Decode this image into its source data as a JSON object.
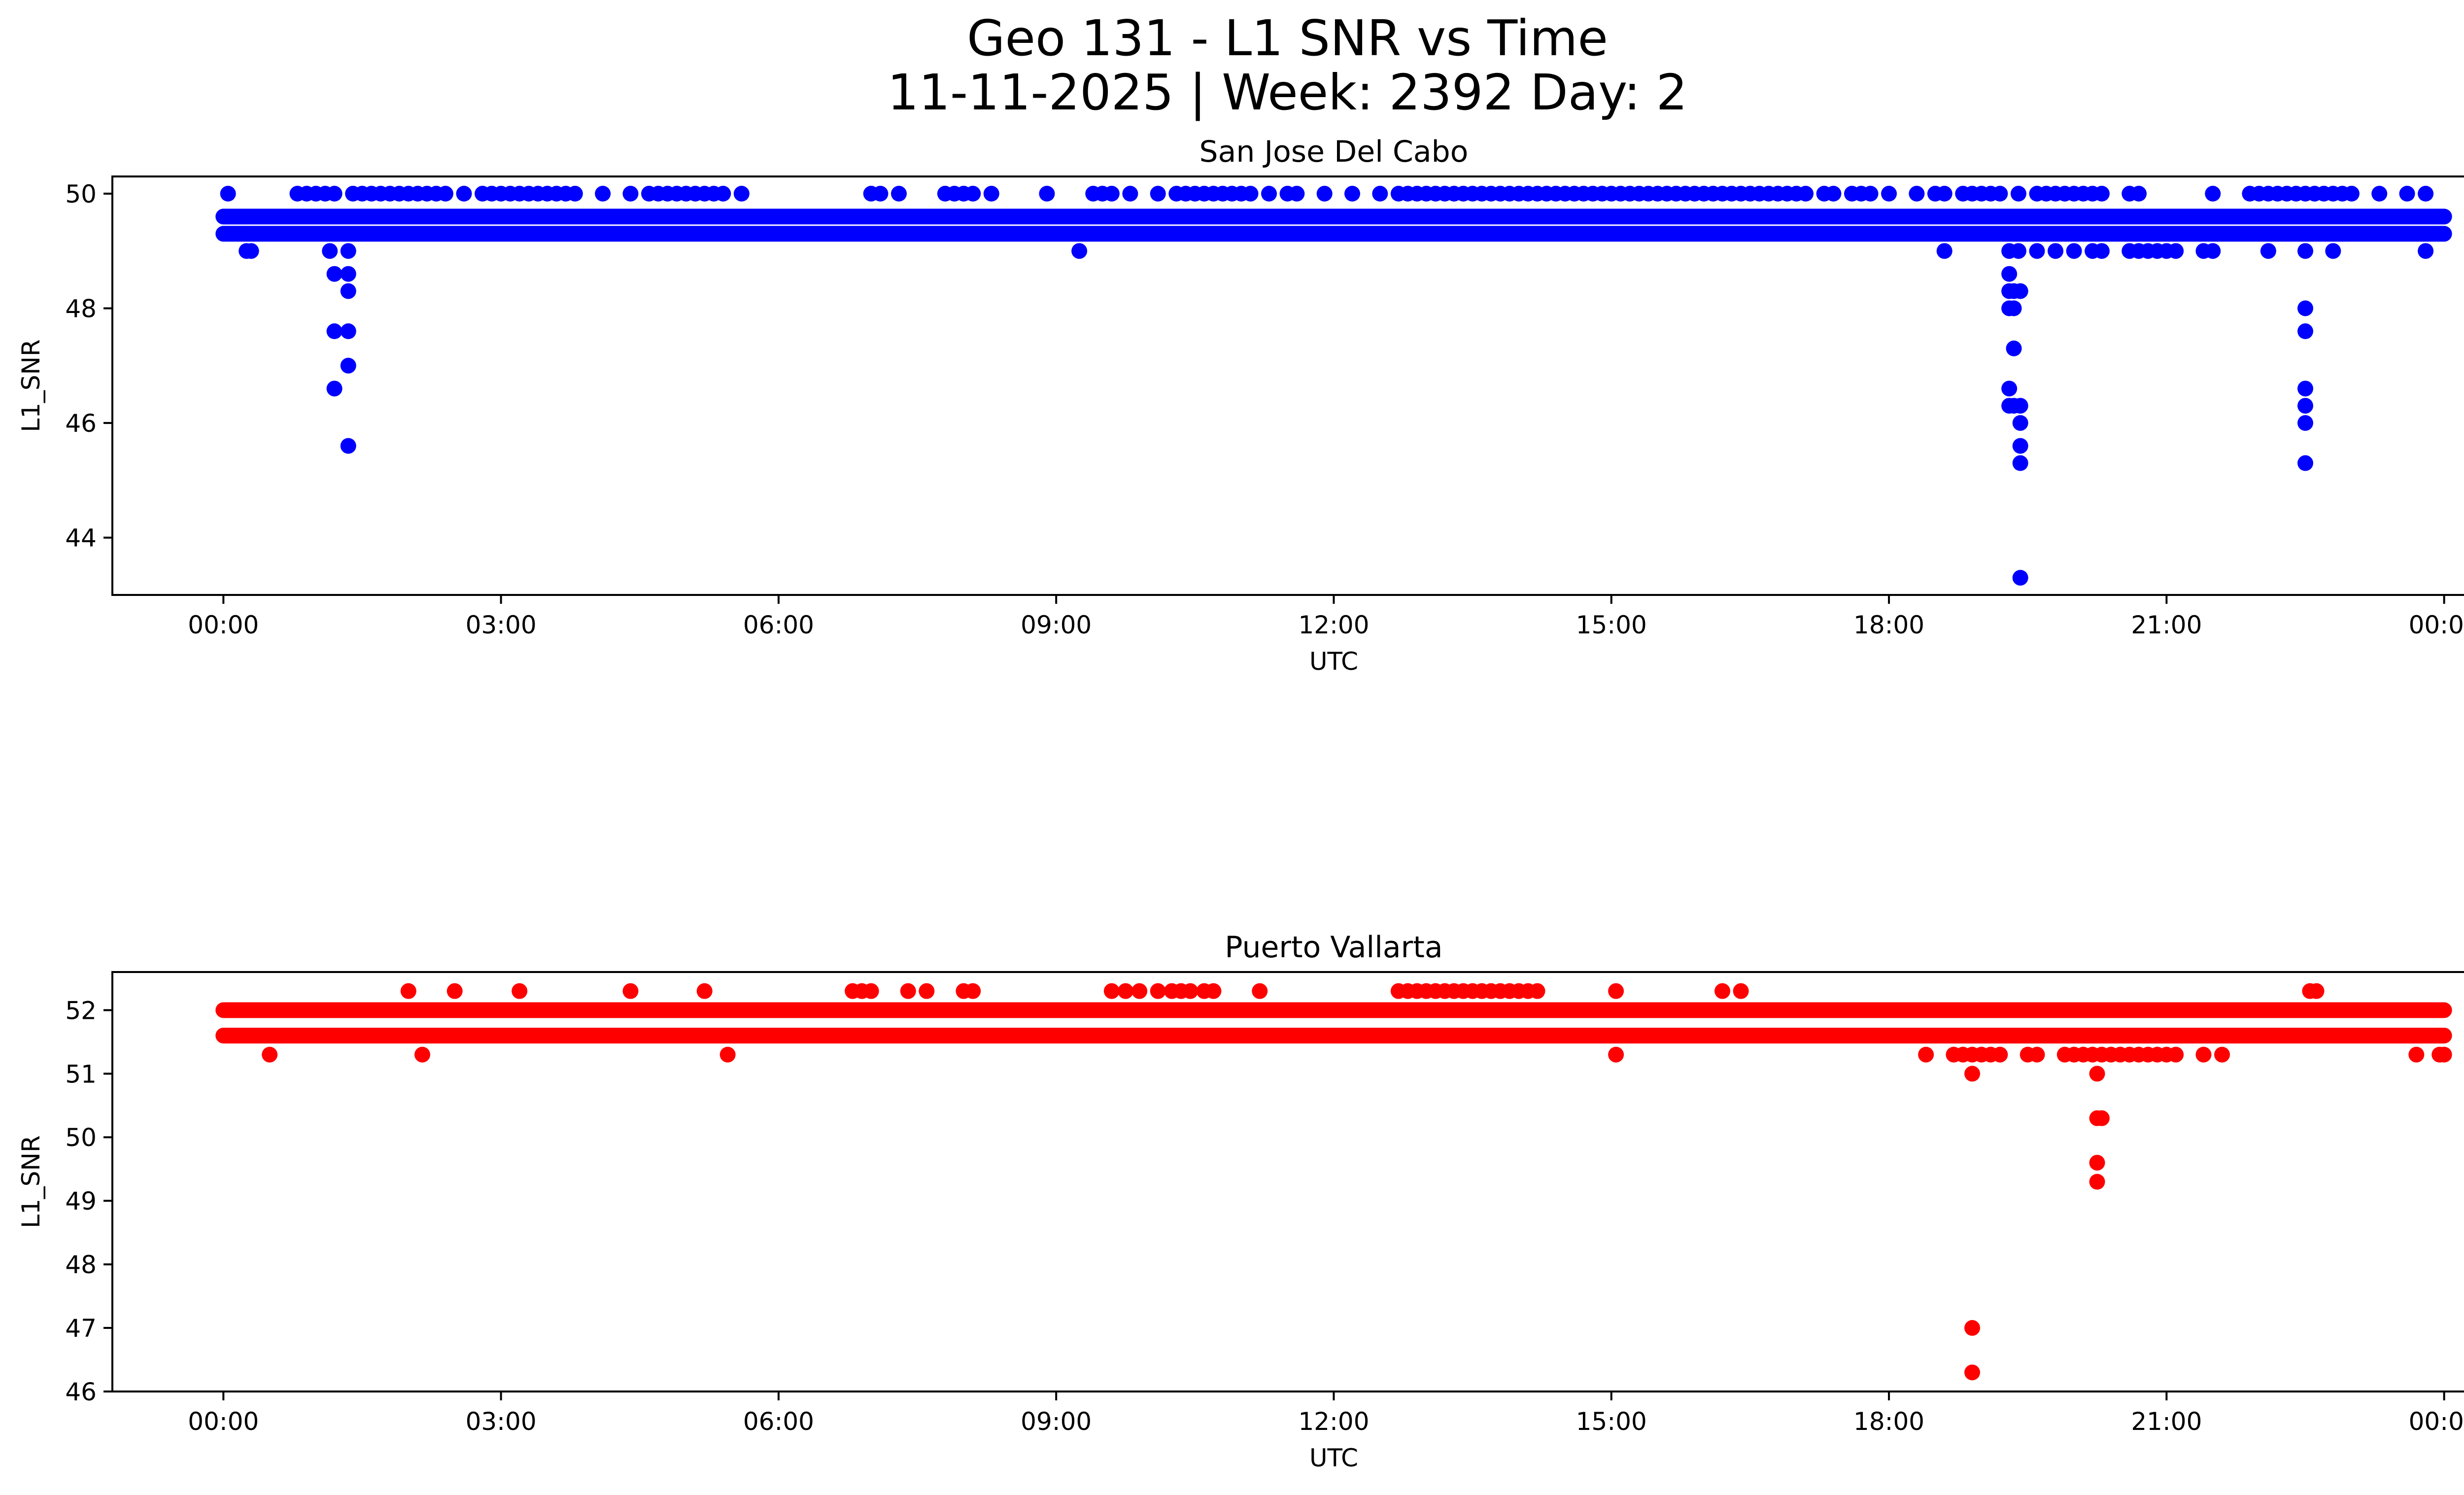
{
  "figure": {
    "title_line1": "Geo 131 - L1 SNR vs Time",
    "title_line2": "11-11-2025 | Week: 2392 Day: 2"
  },
  "chart_data": [
    {
      "type": "scatter",
      "title": "San Jose Del Cabo",
      "xlabel": "UTC",
      "ylabel": "L1_SNR",
      "color": "#0000ff",
      "xlim_hours": [
        -1.2,
        25.2
      ],
      "ylim": [
        43,
        50.3
      ],
      "xticks": [
        {
          "value": 0,
          "label": "00:00"
        },
        {
          "value": 3,
          "label": "03:00"
        },
        {
          "value": 6,
          "label": "06:00"
        },
        {
          "value": 9,
          "label": "09:00"
        },
        {
          "value": 12,
          "label": "12:00"
        },
        {
          "value": 15,
          "label": "15:00"
        },
        {
          "value": 18,
          "label": "18:00"
        },
        {
          "value": 21,
          "label": "21:00"
        },
        {
          "value": 24,
          "label": "00:00"
        }
      ],
      "yticks": [
        {
          "value": 44,
          "label": "44"
        },
        {
          "value": 46,
          "label": "46"
        },
        {
          "value": 48,
          "label": "48"
        },
        {
          "value": 50,
          "label": "50"
        }
      ],
      "bands": [
        {
          "y": 49.6,
          "from": 0,
          "to": 24
        },
        {
          "y": 49.3,
          "from": 0,
          "to": 24
        }
      ],
      "points": [
        [
          0.05,
          50
        ],
        [
          0.8,
          50
        ],
        [
          0.9,
          50
        ],
        [
          1.0,
          50
        ],
        [
          1.1,
          50
        ],
        [
          1.2,
          50
        ],
        [
          1.4,
          50
        ],
        [
          1.5,
          50
        ],
        [
          1.6,
          50
        ],
        [
          1.7,
          50
        ],
        [
          1.8,
          50
        ],
        [
          1.9,
          50
        ],
        [
          2.0,
          50
        ],
        [
          2.1,
          50
        ],
        [
          2.2,
          50
        ],
        [
          2.3,
          50
        ],
        [
          2.4,
          50
        ],
        [
          2.6,
          50
        ],
        [
          2.8,
          50
        ],
        [
          2.9,
          50
        ],
        [
          3.0,
          50
        ],
        [
          3.1,
          50
        ],
        [
          3.2,
          50
        ],
        [
          3.3,
          50
        ],
        [
          3.4,
          50
        ],
        [
          3.5,
          50
        ],
        [
          3.6,
          50
        ],
        [
          3.7,
          50
        ],
        [
          3.8,
          50
        ],
        [
          4.1,
          50
        ],
        [
          4.4,
          50
        ],
        [
          4.6,
          50
        ],
        [
          4.7,
          50
        ],
        [
          4.8,
          50
        ],
        [
          4.9,
          50
        ],
        [
          5.0,
          50
        ],
        [
          5.1,
          50
        ],
        [
          5.2,
          50
        ],
        [
          5.3,
          50
        ],
        [
          5.4,
          50
        ],
        [
          5.6,
          50
        ],
        [
          7.0,
          50
        ],
        [
          7.1,
          50
        ],
        [
          7.3,
          50
        ],
        [
          7.8,
          50
        ],
        [
          7.9,
          50
        ],
        [
          8.0,
          50
        ],
        [
          8.1,
          50
        ],
        [
          8.3,
          50
        ],
        [
          8.9,
          50
        ],
        [
          9.4,
          50
        ],
        [
          9.5,
          50
        ],
        [
          9.6,
          50
        ],
        [
          9.8,
          50
        ],
        [
          10.1,
          50
        ],
        [
          10.3,
          50
        ],
        [
          10.4,
          50
        ],
        [
          10.5,
          50
        ],
        [
          10.6,
          50
        ],
        [
          10.7,
          50
        ],
        [
          10.8,
          50
        ],
        [
          10.9,
          50
        ],
        [
          11.0,
          50
        ],
        [
          11.1,
          50
        ],
        [
          11.3,
          50
        ],
        [
          11.5,
          50
        ],
        [
          11.6,
          50
        ],
        [
          11.9,
          50
        ],
        [
          12.2,
          50
        ],
        [
          12.5,
          50
        ],
        [
          12.7,
          50
        ],
        [
          12.8,
          50
        ],
        [
          12.9,
          50
        ],
        [
          13.0,
          50
        ],
        [
          13.1,
          50
        ],
        [
          13.2,
          50
        ],
        [
          13.3,
          50
        ],
        [
          13.4,
          50
        ],
        [
          13.5,
          50
        ],
        [
          13.6,
          50
        ],
        [
          13.7,
          50
        ],
        [
          13.8,
          50
        ],
        [
          13.9,
          50
        ],
        [
          14.0,
          50
        ],
        [
          14.1,
          50
        ],
        [
          14.2,
          50
        ],
        [
          14.3,
          50
        ],
        [
          14.4,
          50
        ],
        [
          14.5,
          50
        ],
        [
          14.6,
          50
        ],
        [
          14.7,
          50
        ],
        [
          14.8,
          50
        ],
        [
          14.9,
          50
        ],
        [
          15.0,
          50
        ],
        [
          15.1,
          50
        ],
        [
          15.2,
          50
        ],
        [
          15.3,
          50
        ],
        [
          15.4,
          50
        ],
        [
          15.5,
          50
        ],
        [
          15.6,
          50
        ],
        [
          15.7,
          50
        ],
        [
          15.8,
          50
        ],
        [
          15.9,
          50
        ],
        [
          16.0,
          50
        ],
        [
          16.1,
          50
        ],
        [
          16.2,
          50
        ],
        [
          16.3,
          50
        ],
        [
          16.4,
          50
        ],
        [
          16.5,
          50
        ],
        [
          16.6,
          50
        ],
        [
          16.7,
          50
        ],
        [
          16.8,
          50
        ],
        [
          16.9,
          50
        ],
        [
          17.0,
          50
        ],
        [
          17.1,
          50
        ],
        [
          17.3,
          50
        ],
        [
          17.4,
          50
        ],
        [
          17.6,
          50
        ],
        [
          17.7,
          50
        ],
        [
          17.8,
          50
        ],
        [
          18.0,
          50
        ],
        [
          18.3,
          50
        ],
        [
          18.5,
          50
        ],
        [
          18.6,
          50
        ],
        [
          18.8,
          50
        ],
        [
          18.9,
          50
        ],
        [
          19.0,
          50
        ],
        [
          19.1,
          50
        ],
        [
          19.2,
          50
        ],
        [
          19.4,
          50
        ],
        [
          19.6,
          50
        ],
        [
          19.7,
          50
        ],
        [
          19.8,
          50
        ],
        [
          19.9,
          50
        ],
        [
          20.0,
          50
        ],
        [
          20.1,
          50
        ],
        [
          20.2,
          50
        ],
        [
          20.3,
          50
        ],
        [
          20.6,
          50
        ],
        [
          20.7,
          50
        ],
        [
          21.5,
          50
        ],
        [
          21.9,
          50
        ],
        [
          22.0,
          50
        ],
        [
          22.1,
          50
        ],
        [
          22.2,
          50
        ],
        [
          22.3,
          50
        ],
        [
          22.4,
          50
        ],
        [
          22.5,
          50
        ],
        [
          22.6,
          50
        ],
        [
          22.7,
          50
        ],
        [
          22.8,
          50
        ],
        [
          22.9,
          50
        ],
        [
          23.0,
          50
        ],
        [
          23.3,
          50
        ],
        [
          23.6,
          50
        ],
        [
          23.8,
          50
        ],
        [
          0.25,
          49
        ],
        [
          0.3,
          49
        ],
        [
          1.15,
          49
        ],
        [
          1.35,
          49
        ],
        [
          9.25,
          49
        ],
        [
          18.6,
          49
        ],
        [
          19.3,
          49
        ],
        [
          19.4,
          49
        ],
        [
          19.6,
          49
        ],
        [
          19.8,
          49
        ],
        [
          20.0,
          49
        ],
        [
          20.2,
          49
        ],
        [
          20.3,
          49
        ],
        [
          20.6,
          49
        ],
        [
          20.7,
          49
        ],
        [
          20.8,
          49
        ],
        [
          20.9,
          49
        ],
        [
          21.0,
          49
        ],
        [
          21.1,
          49
        ],
        [
          21.4,
          49
        ],
        [
          21.5,
          49
        ],
        [
          22.1,
          49
        ],
        [
          22.5,
          49
        ],
        [
          22.8,
          49
        ],
        [
          23.8,
          49
        ],
        [
          1.2,
          48.6
        ],
        [
          1.35,
          48.6
        ],
        [
          1.35,
          48.3
        ],
        [
          1.2,
          47.6
        ],
        [
          1.35,
          47.6
        ],
        [
          1.35,
          47.0
        ],
        [
          1.2,
          46.6
        ],
        [
          1.35,
          45.6
        ],
        [
          19.3,
          48.6
        ],
        [
          19.3,
          48.3
        ],
        [
          19.35,
          48.3
        ],
        [
          19.42,
          48.3
        ],
        [
          19.3,
          48.0
        ],
        [
          19.35,
          48.0
        ],
        [
          19.35,
          47.3
        ],
        [
          19.3,
          46.6
        ],
        [
          19.3,
          46.3
        ],
        [
          19.35,
          46.3
        ],
        [
          19.42,
          46.3
        ],
        [
          19.42,
          46.0
        ],
        [
          19.42,
          45.6
        ],
        [
          19.42,
          45.3
        ],
        [
          19.42,
          43.3
        ],
        [
          22.5,
          48.0
        ],
        [
          22.5,
          47.6
        ],
        [
          22.5,
          46.6
        ],
        [
          22.5,
          46.3
        ],
        [
          22.5,
          46.0
        ],
        [
          22.5,
          45.3
        ]
      ]
    },
    {
      "type": "scatter",
      "title": "Puerto Vallarta",
      "xlabel": "UTC",
      "ylabel": "L1_SNR",
      "color": "#ff0000",
      "xlim_hours": [
        -1.2,
        25.2
      ],
      "ylim": [
        46,
        52.6
      ],
      "xticks": [
        {
          "value": 0,
          "label": "00:00"
        },
        {
          "value": 3,
          "label": "03:00"
        },
        {
          "value": 6,
          "label": "06:00"
        },
        {
          "value": 9,
          "label": "09:00"
        },
        {
          "value": 12,
          "label": "12:00"
        },
        {
          "value": 15,
          "label": "15:00"
        },
        {
          "value": 18,
          "label": "18:00"
        },
        {
          "value": 21,
          "label": "21:00"
        },
        {
          "value": 24,
          "label": "00:00"
        }
      ],
      "yticks": [
        {
          "value": 46,
          "label": "46"
        },
        {
          "value": 47,
          "label": "47"
        },
        {
          "value": 48,
          "label": "48"
        },
        {
          "value": 49,
          "label": "49"
        },
        {
          "value": 50,
          "label": "50"
        },
        {
          "value": 51,
          "label": "51"
        },
        {
          "value": 52,
          "label": "52"
        }
      ],
      "bands": [
        {
          "y": 52.0,
          "from": 0,
          "to": 24
        },
        {
          "y": 51.6,
          "from": 0,
          "to": 24
        }
      ],
      "points": [
        [
          2.0,
          52.3
        ],
        [
          2.5,
          52.3
        ],
        [
          3.2,
          52.3
        ],
        [
          4.4,
          52.3
        ],
        [
          5.2,
          52.3
        ],
        [
          6.8,
          52.3
        ],
        [
          6.9,
          52.3
        ],
        [
          7.0,
          52.3
        ],
        [
          7.4,
          52.3
        ],
        [
          7.6,
          52.3
        ],
        [
          8.0,
          52.3
        ],
        [
          8.1,
          52.3
        ],
        [
          9.6,
          52.3
        ],
        [
          9.75,
          52.3
        ],
        [
          9.9,
          52.3
        ],
        [
          10.1,
          52.3
        ],
        [
          10.25,
          52.3
        ],
        [
          10.35,
          52.3
        ],
        [
          10.45,
          52.3
        ],
        [
          10.6,
          52.3
        ],
        [
          10.7,
          52.3
        ],
        [
          11.2,
          52.3
        ],
        [
          12.7,
          52.3
        ],
        [
          12.8,
          52.3
        ],
        [
          12.9,
          52.3
        ],
        [
          13.0,
          52.3
        ],
        [
          13.1,
          52.3
        ],
        [
          13.2,
          52.3
        ],
        [
          13.3,
          52.3
        ],
        [
          13.4,
          52.3
        ],
        [
          13.5,
          52.3
        ],
        [
          13.6,
          52.3
        ],
        [
          13.7,
          52.3
        ],
        [
          13.8,
          52.3
        ],
        [
          13.9,
          52.3
        ],
        [
          14.0,
          52.3
        ],
        [
          14.1,
          52.3
        ],
        [
          14.2,
          52.3
        ],
        [
          15.05,
          52.3
        ],
        [
          16.2,
          52.3
        ],
        [
          16.4,
          52.3
        ],
        [
          22.55,
          52.3
        ],
        [
          22.62,
          52.3
        ],
        [
          0.5,
          51.3
        ],
        [
          2.15,
          51.3
        ],
        [
          5.45,
          51.3
        ],
        [
          15.05,
          51.3
        ],
        [
          18.4,
          51.3
        ],
        [
          18.7,
          51.3
        ],
        [
          18.8,
          51.3
        ],
        [
          18.9,
          51.3
        ],
        [
          19.0,
          51.3
        ],
        [
          19.1,
          51.3
        ],
        [
          19.2,
          51.3
        ],
        [
          19.5,
          51.3
        ],
        [
          19.6,
          51.3
        ],
        [
          19.9,
          51.3
        ],
        [
          20.0,
          51.3
        ],
        [
          20.1,
          51.3
        ],
        [
          20.2,
          51.3
        ],
        [
          20.3,
          51.3
        ],
        [
          20.4,
          51.3
        ],
        [
          20.5,
          51.3
        ],
        [
          20.6,
          51.3
        ],
        [
          20.7,
          51.3
        ],
        [
          20.8,
          51.3
        ],
        [
          20.9,
          51.3
        ],
        [
          21.0,
          51.3
        ],
        [
          21.1,
          51.3
        ],
        [
          21.4,
          51.3
        ],
        [
          21.6,
          51.3
        ],
        [
          23.7,
          51.3
        ],
        [
          23.95,
          51.3
        ],
        [
          24.0,
          51.3
        ],
        [
          18.9,
          51.0
        ],
        [
          20.25,
          51.0
        ],
        [
          20.25,
          50.3
        ],
        [
          20.3,
          50.3
        ],
        [
          20.25,
          49.6
        ],
        [
          20.25,
          49.3
        ],
        [
          18.9,
          47.0
        ],
        [
          18.9,
          46.3
        ]
      ]
    }
  ]
}
